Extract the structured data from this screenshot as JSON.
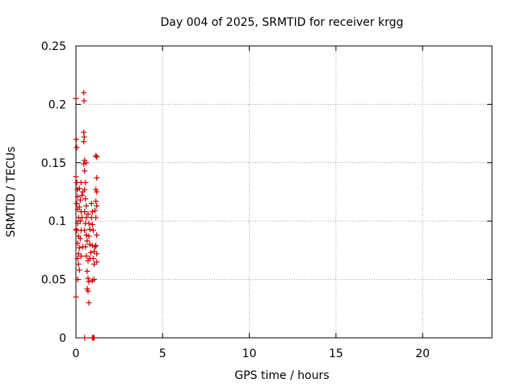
{
  "chart_data": {
    "type": "scatter",
    "title": "Day 004 of 2025, SRMTID for receiver krgg",
    "xlabel": "GPS time / hours",
    "ylabel": "SRMTID / TECUs",
    "xlim": [
      0,
      24
    ],
    "ylim": [
      0,
      0.25
    ],
    "grid": true,
    "marker": "plus",
    "color": "#cc0000",
    "x_ticks": [
      {
        "value": 0,
        "label": "0"
      },
      {
        "value": 5,
        "label": "5"
      },
      {
        "value": 10,
        "label": "10"
      },
      {
        "value": 15,
        "label": "15"
      },
      {
        "value": 20,
        "label": "20"
      }
    ],
    "y_ticks": [
      {
        "value": 0,
        "label": "0"
      },
      {
        "value": 0.05,
        "label": "0.05"
      },
      {
        "value": 0.1,
        "label": "0.1"
      },
      {
        "value": 0.15,
        "label": "0.15"
      },
      {
        "value": 0.2,
        "label": "0.2"
      },
      {
        "value": 0.25,
        "label": "0.25"
      }
    ],
    "series": [
      {
        "name": "SRMTID",
        "points": [
          [
            0.0,
            0.205
          ],
          [
            0.02,
            0.17
          ],
          [
            0.05,
            0.163
          ],
          [
            0.0,
            0.138
          ],
          [
            0.05,
            0.133
          ],
          [
            0.08,
            0.127
          ],
          [
            0.1,
            0.121
          ],
          [
            0.05,
            0.115
          ],
          [
            0.1,
            0.11
          ],
          [
            0.15,
            0.103
          ],
          [
            0.1,
            0.098
          ],
          [
            0.05,
            0.092
          ],
          [
            0.15,
            0.087
          ],
          [
            0.1,
            0.081
          ],
          [
            0.2,
            0.077
          ],
          [
            0.15,
            0.072
          ],
          [
            0.1,
            0.068
          ],
          [
            0.15,
            0.063
          ],
          [
            0.2,
            0.058
          ],
          [
            0.1,
            0.05
          ],
          [
            0.0,
            0.035
          ],
          [
            0.0,
            0.093
          ],
          [
            0.25,
            0.1
          ],
          [
            0.2,
            0.112
          ],
          [
            0.25,
            0.118
          ],
          [
            0.2,
            0.128
          ],
          [
            0.3,
            0.133
          ],
          [
            0.25,
            0.085
          ],
          [
            0.3,
            0.092
          ],
          [
            0.35,
            0.103
          ],
          [
            0.3,
            0.108
          ],
          [
            0.35,
            0.122
          ],
          [
            0.4,
            0.125
          ],
          [
            0.3,
            0.07
          ],
          [
            0.4,
            0.078
          ],
          [
            0.45,
            0.21
          ],
          [
            0.47,
            0.203
          ],
          [
            0.45,
            0.176
          ],
          [
            0.48,
            0.172
          ],
          [
            0.45,
            0.168
          ],
          [
            0.5,
            0.152
          ],
          [
            0.45,
            0.149
          ],
          [
            0.5,
            0.143
          ],
          [
            0.55,
            0.133
          ],
          [
            0.5,
            0.127
          ],
          [
            0.55,
            0.119
          ],
          [
            0.6,
            0.113
          ],
          [
            0.5,
            0.108
          ],
          [
            0.6,
            0.103
          ],
          [
            0.55,
            0.098
          ],
          [
            0.5,
            0.092
          ],
          [
            0.6,
            0.088
          ],
          [
            0.65,
            0.083
          ],
          [
            0.55,
            0.078
          ],
          [
            0.6,
            0.07
          ],
          [
            0.7,
            0.066
          ],
          [
            0.65,
            0.057
          ],
          [
            0.7,
            0.051
          ],
          [
            0.75,
            0.048
          ],
          [
            0.65,
            0.042
          ],
          [
            0.7,
            0.04
          ],
          [
            0.75,
            0.03
          ],
          [
            0.6,
            0.15
          ],
          [
            0.7,
            0.106
          ],
          [
            0.75,
            0.098
          ],
          [
            0.8,
            0.093
          ],
          [
            0.75,
            0.087
          ],
          [
            0.8,
            0.08
          ],
          [
            0.85,
            0.073
          ],
          [
            0.8,
            0.068
          ],
          [
            0.9,
            0.115
          ],
          [
            0.95,
            0.108
          ],
          [
            0.9,
            0.103
          ],
          [
            0.95,
            0.097
          ],
          [
            1.0,
            0.092
          ],
          [
            0.95,
            0.079
          ],
          [
            1.05,
            0.074
          ],
          [
            1.0,
            0.068
          ],
          [
            1.05,
            0.063
          ],
          [
            0.95,
            0.049
          ],
          [
            1.05,
            0.05
          ],
          [
            1.15,
            0.156
          ],
          [
            1.2,
            0.155
          ],
          [
            1.2,
            0.137
          ],
          [
            1.15,
            0.127
          ],
          [
            1.2,
            0.125
          ],
          [
            1.15,
            0.117
          ],
          [
            1.2,
            0.113
          ],
          [
            1.15,
            0.103
          ],
          [
            1.2,
            0.088
          ],
          [
            1.15,
            0.079
          ],
          [
            1.2,
            0.072
          ],
          [
            1.2,
            0.065
          ],
          [
            1.1,
            0.109
          ],
          [
            1.1,
            0.078
          ],
          [
            0.5,
            0.0
          ],
          [
            0.95,
            0.0
          ],
          [
            1.0,
            0.0
          ],
          [
            1.05,
            0.0
          ]
        ]
      }
    ]
  }
}
